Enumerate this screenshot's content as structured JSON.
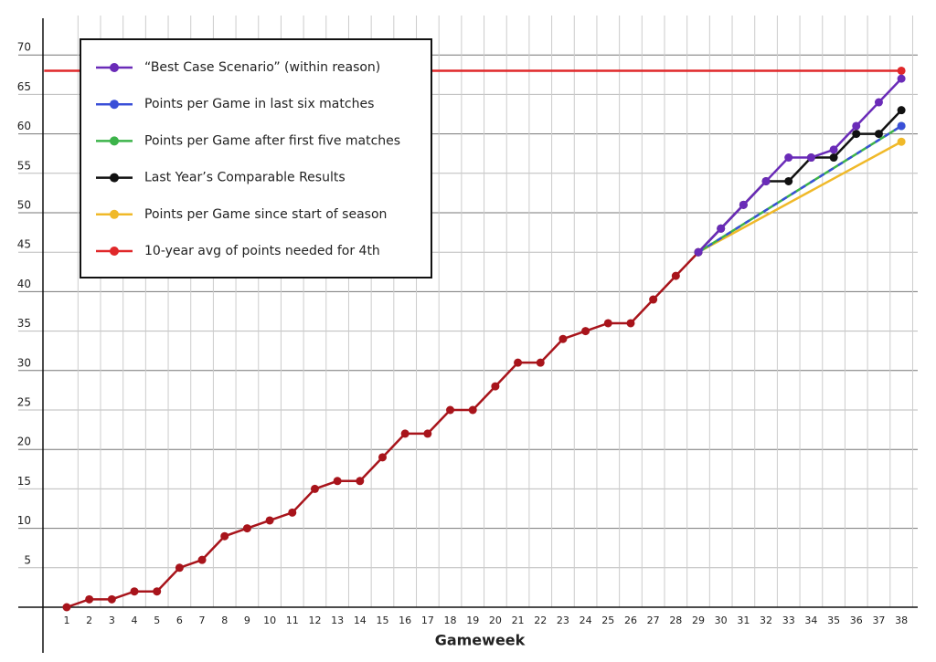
{
  "chart_data": {
    "type": "line",
    "x_label": "Gameweek",
    "categories": [
      1,
      2,
      3,
      4,
      5,
      6,
      7,
      8,
      9,
      10,
      11,
      12,
      13,
      14,
      15,
      16,
      17,
      18,
      19,
      20,
      21,
      22,
      23,
      24,
      25,
      26,
      27,
      28,
      29,
      30,
      31,
      32,
      33,
      34,
      35,
      36,
      37,
      38
    ],
    "xlim": [
      0,
      39
    ],
    "ylim": [
      0,
      75
    ],
    "yticks": [
      5,
      10,
      15,
      20,
      25,
      30,
      35,
      40,
      45,
      50,
      55,
      60,
      65,
      70
    ],
    "grid": true,
    "legend": "upper-left",
    "series": [
      {
        "name": "“Best Case Scenario” (within reason)",
        "color": "#6a2bb8",
        "x": [
          29,
          30,
          31,
          32,
          33,
          34,
          35,
          36,
          37,
          38
        ],
        "values": [
          45,
          48,
          51,
          54,
          57,
          57,
          58,
          61,
          64,
          67
        ]
      },
      {
        "name": "Points per Game in last six matches",
        "color": "#3a4fd8",
        "dash": true,
        "x": [
          29,
          38
        ],
        "values": [
          45,
          61
        ]
      },
      {
        "name": "Points per Game after first five matches",
        "color": "#3cb34a",
        "x": [
          29,
          38
        ],
        "values": [
          45,
          61
        ]
      },
      {
        "name": "Last Year’s Comparable Results",
        "color": "#111111",
        "x": [
          29,
          30,
          31,
          32,
          33,
          34,
          35,
          36,
          37,
          38
        ],
        "values": [
          45,
          48,
          51,
          54,
          54,
          57,
          57,
          60,
          60,
          63
        ]
      },
      {
        "name": "Points per Game since start of season",
        "color": "#f0b929",
        "x": [
          29,
          38
        ],
        "values": [
          45,
          59
        ]
      },
      {
        "name": "10-year avg of points needed for 4th",
        "color": "#e0282a",
        "x": [
          0,
          38
        ],
        "values": [
          68,
          68
        ]
      },
      {
        "color": "#a8141b",
        "x": [
          1,
          2,
          3,
          4,
          5,
          6,
          7,
          8,
          9,
          10,
          11,
          12,
          13,
          14,
          15,
          16,
          17,
          18,
          19,
          20,
          21,
          22,
          23,
          24,
          25,
          26,
          27,
          28,
          29
        ],
        "values": [
          0,
          1,
          1,
          2,
          2,
          5,
          6,
          9,
          10,
          11,
          12,
          15,
          16,
          16,
          19,
          22,
          22,
          25,
          25,
          28,
          31,
          31,
          34,
          35,
          36,
          36,
          39,
          42,
          45
        ]
      }
    ]
  }
}
